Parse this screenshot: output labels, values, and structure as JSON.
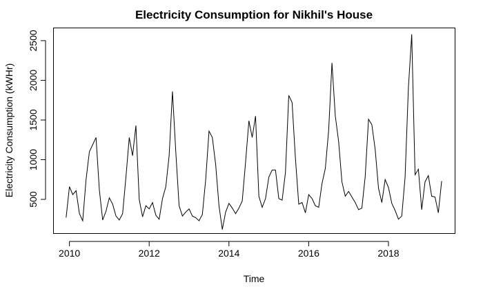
{
  "chart_data": {
    "type": "line",
    "title": "Electricity Consumption for Nikhil's House",
    "xlabel": "Time",
    "ylabel": "Electricity Consumption (kWHr)",
    "xlim": [
      2009.6,
      2019.67
    ],
    "ylim": [
      70,
      2660
    ],
    "x_ticks": [
      2010,
      2012,
      2014,
      2016,
      2018
    ],
    "y_ticks": [
      500,
      1000,
      1500,
      2000,
      2500
    ],
    "grid": false,
    "line_color": "#000000",
    "series": [
      {
        "start_year": 2009.917,
        "frequency": 12,
        "values": [
          270,
          660,
          560,
          610,
          320,
          230,
          750,
          1100,
          1190,
          1280,
          620,
          240,
          350,
          520,
          440,
          290,
          240,
          320,
          780,
          1280,
          1050,
          1430,
          500,
          280,
          420,
          380,
          460,
          300,
          250,
          510,
          660,
          1050,
          1860,
          1100,
          420,
          290,
          340,
          380,
          290,
          270,
          230,
          310,
          750,
          1360,
          1280,
          940,
          420,
          120,
          340,
          450,
          390,
          320,
          390,
          480,
          970,
          1490,
          1280,
          1550,
          540,
          400,
          510,
          780,
          870,
          870,
          510,
          490,
          840,
          1810,
          1720,
          1020,
          440,
          460,
          330,
          560,
          510,
          420,
          400,
          700,
          890,
          1370,
          2220,
          1550,
          1230,
          720,
          540,
          600,
          530,
          460,
          370,
          390,
          790,
          1510,
          1440,
          1130,
          640,
          460,
          750,
          650,
          450,
          360,
          250,
          290,
          780,
          1910,
          2580,
          810,
          880,
          370,
          720,
          800,
          540,
          530,
          330,
          730
        ]
      }
    ]
  }
}
